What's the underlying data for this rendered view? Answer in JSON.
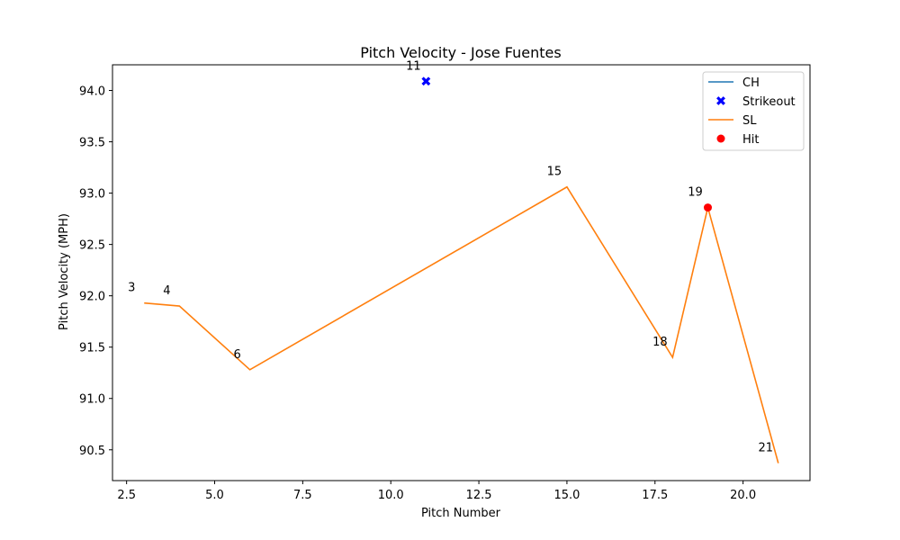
{
  "chart_data": {
    "type": "line",
    "title": "Pitch Velocity - Jose Fuentes",
    "xlabel": "Pitch Number",
    "ylabel": "Pitch Velocity (MPH)",
    "xlim": [
      2.1,
      21.9
    ],
    "ylim": [
      90.2,
      94.25
    ],
    "xticks": [
      2.5,
      5.0,
      7.5,
      10.0,
      12.5,
      15.0,
      17.5,
      20.0
    ],
    "xtick_labels": [
      "2.5",
      "5.0",
      "7.5",
      "10.0",
      "12.5",
      "15.0",
      "17.5",
      "20.0"
    ],
    "yticks": [
      90.5,
      91.0,
      91.5,
      92.0,
      92.5,
      93.0,
      93.5,
      94.0
    ],
    "ytick_labels": [
      "90.5",
      "91.0",
      "91.5",
      "92.0",
      "92.5",
      "93.0",
      "93.5",
      "94.0"
    ],
    "grid": false,
    "legend_position": "top-right",
    "series": [
      {
        "name": "CH",
        "kind": "line",
        "color": "#1f77b4",
        "x": [],
        "y": []
      },
      {
        "name": "Strikeout",
        "kind": "scatter",
        "marker": "x",
        "color": "#0000ff",
        "x": [
          11
        ],
        "y": [
          94.09
        ]
      },
      {
        "name": "SL",
        "kind": "line",
        "color": "#ff7f0e",
        "x": [
          3,
          4,
          6,
          15,
          18,
          19,
          21
        ],
        "y": [
          91.93,
          91.9,
          91.28,
          93.06,
          91.4,
          92.86,
          90.37
        ]
      },
      {
        "name": "Hit",
        "kind": "scatter",
        "marker": "circle",
        "color": "#ff0000",
        "x": [
          19
        ],
        "y": [
          92.86
        ]
      }
    ],
    "annotations": [
      {
        "text": "3",
        "x": 3,
        "y": 91.93
      },
      {
        "text": "4",
        "x": 4,
        "y": 91.9
      },
      {
        "text": "6",
        "x": 6,
        "y": 91.28
      },
      {
        "text": "11",
        "x": 11,
        "y": 94.09
      },
      {
        "text": "15",
        "x": 15,
        "y": 93.06
      },
      {
        "text": "18",
        "x": 18,
        "y": 91.4
      },
      {
        "text": "19",
        "x": 19,
        "y": 92.86
      },
      {
        "text": "21",
        "x": 21,
        "y": 90.37
      }
    ]
  }
}
